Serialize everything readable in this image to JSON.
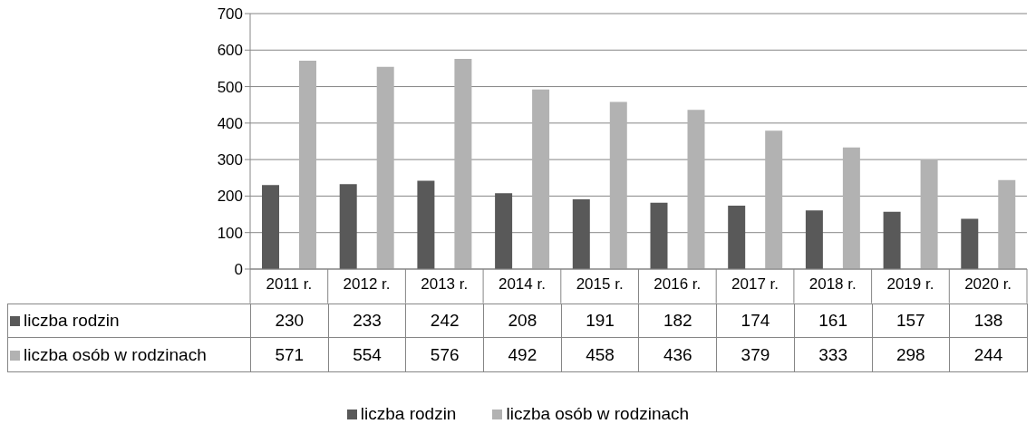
{
  "chart_data": {
    "type": "bar",
    "categories": [
      "2011 r.",
      "2012 r.",
      "2013 r.",
      "2014 r.",
      "2015 r.",
      "2016 r.",
      "2017 r.",
      "2018 r.",
      "2019 r.",
      "2020 r."
    ],
    "series": [
      {
        "name": "liczba rodzin",
        "color": "#595959",
        "values": [
          230,
          233,
          242,
          208,
          191,
          182,
          174,
          161,
          157,
          138
        ]
      },
      {
        "name": "liczba osób w rodzinach",
        "color": "#b2b2b2",
        "values": [
          571,
          554,
          576,
          492,
          458,
          436,
          379,
          333,
          298,
          244
        ]
      }
    ],
    "ylim": [
      0,
      700
    ],
    "yticks": [
      0,
      100,
      200,
      300,
      400,
      500,
      600,
      700
    ],
    "grid": "y",
    "legend": "bottom",
    "data_labels": true
  }
}
